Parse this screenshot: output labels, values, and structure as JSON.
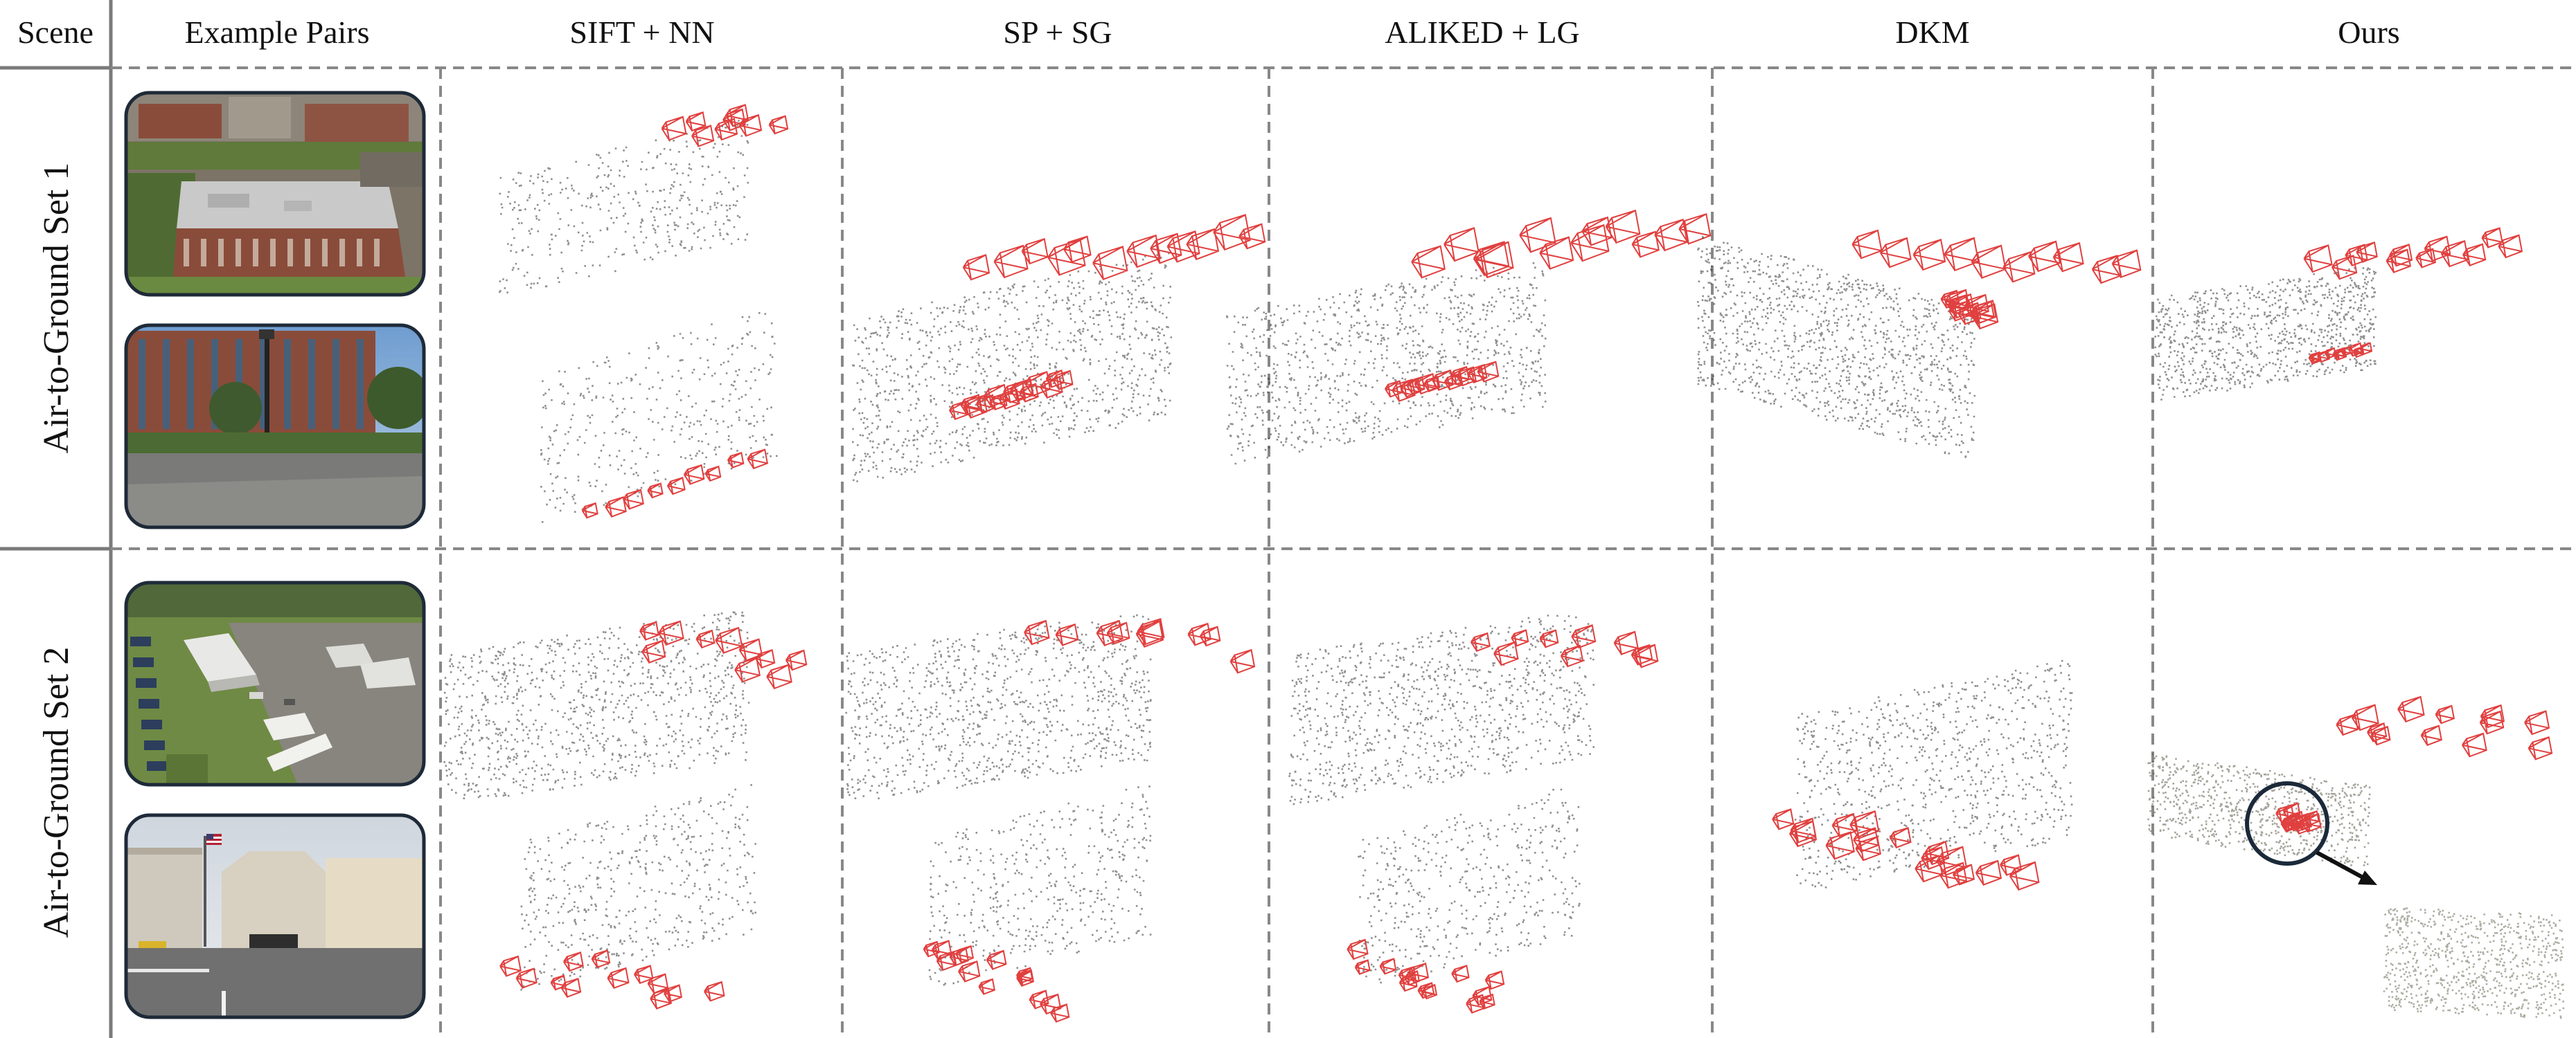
{
  "header": {
    "scene": "Scene",
    "pairs": "Example Pairs",
    "methods": [
      "SIFT + NN",
      "SP + SG",
      "ALIKED + LG",
      "DKM",
      "Ours"
    ]
  },
  "rows": [
    {
      "label": "Air-to-Ground Set 1"
    },
    {
      "label": "Air-to-Ground Set 2"
    }
  ],
  "colors": {
    "camera": "#e0403f",
    "points": "#333333",
    "solid_line": "#7a7a7a",
    "dashed_line": "#888888",
    "thumb_border": "#1e2a38",
    "aerial_roof": "#c9c9c9",
    "brick": "#8a4c3a",
    "grass": "#5f7a3a",
    "sky": "#8fb3d6",
    "pavement": "#7a7a78"
  },
  "icons": [
    "magnifier-circle-icon",
    "zoom-arrow-icon",
    "flag-icon"
  ]
}
